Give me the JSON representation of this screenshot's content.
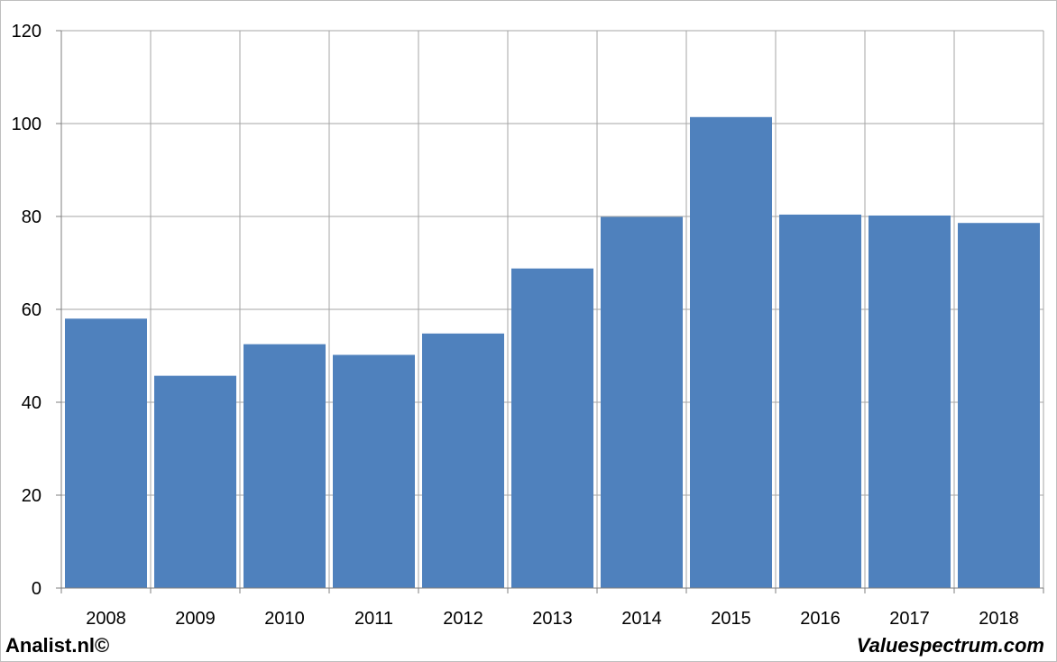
{
  "chart_data": {
    "type": "bar",
    "categories": [
      "2008",
      "2009",
      "2010",
      "2011",
      "2012",
      "2013",
      "2014",
      "2015",
      "2016",
      "2017",
      "2018"
    ],
    "values": [
      58,
      45.7,
      52.5,
      50.2,
      54.8,
      68.8,
      79.9,
      101.4,
      80.4,
      80.2,
      78.6
    ],
    "ylim": [
      0,
      120
    ],
    "yticks": [
      0,
      20,
      40,
      60,
      80,
      100,
      120
    ],
    "grid": true,
    "legend": "none",
    "colors": {
      "bar": "#4f81bd",
      "grid": "#a6a6a6",
      "frame": "#bfbfbf"
    }
  },
  "footer": {
    "left": "Analist.nl©",
    "right": "Valuespectrum.com"
  }
}
